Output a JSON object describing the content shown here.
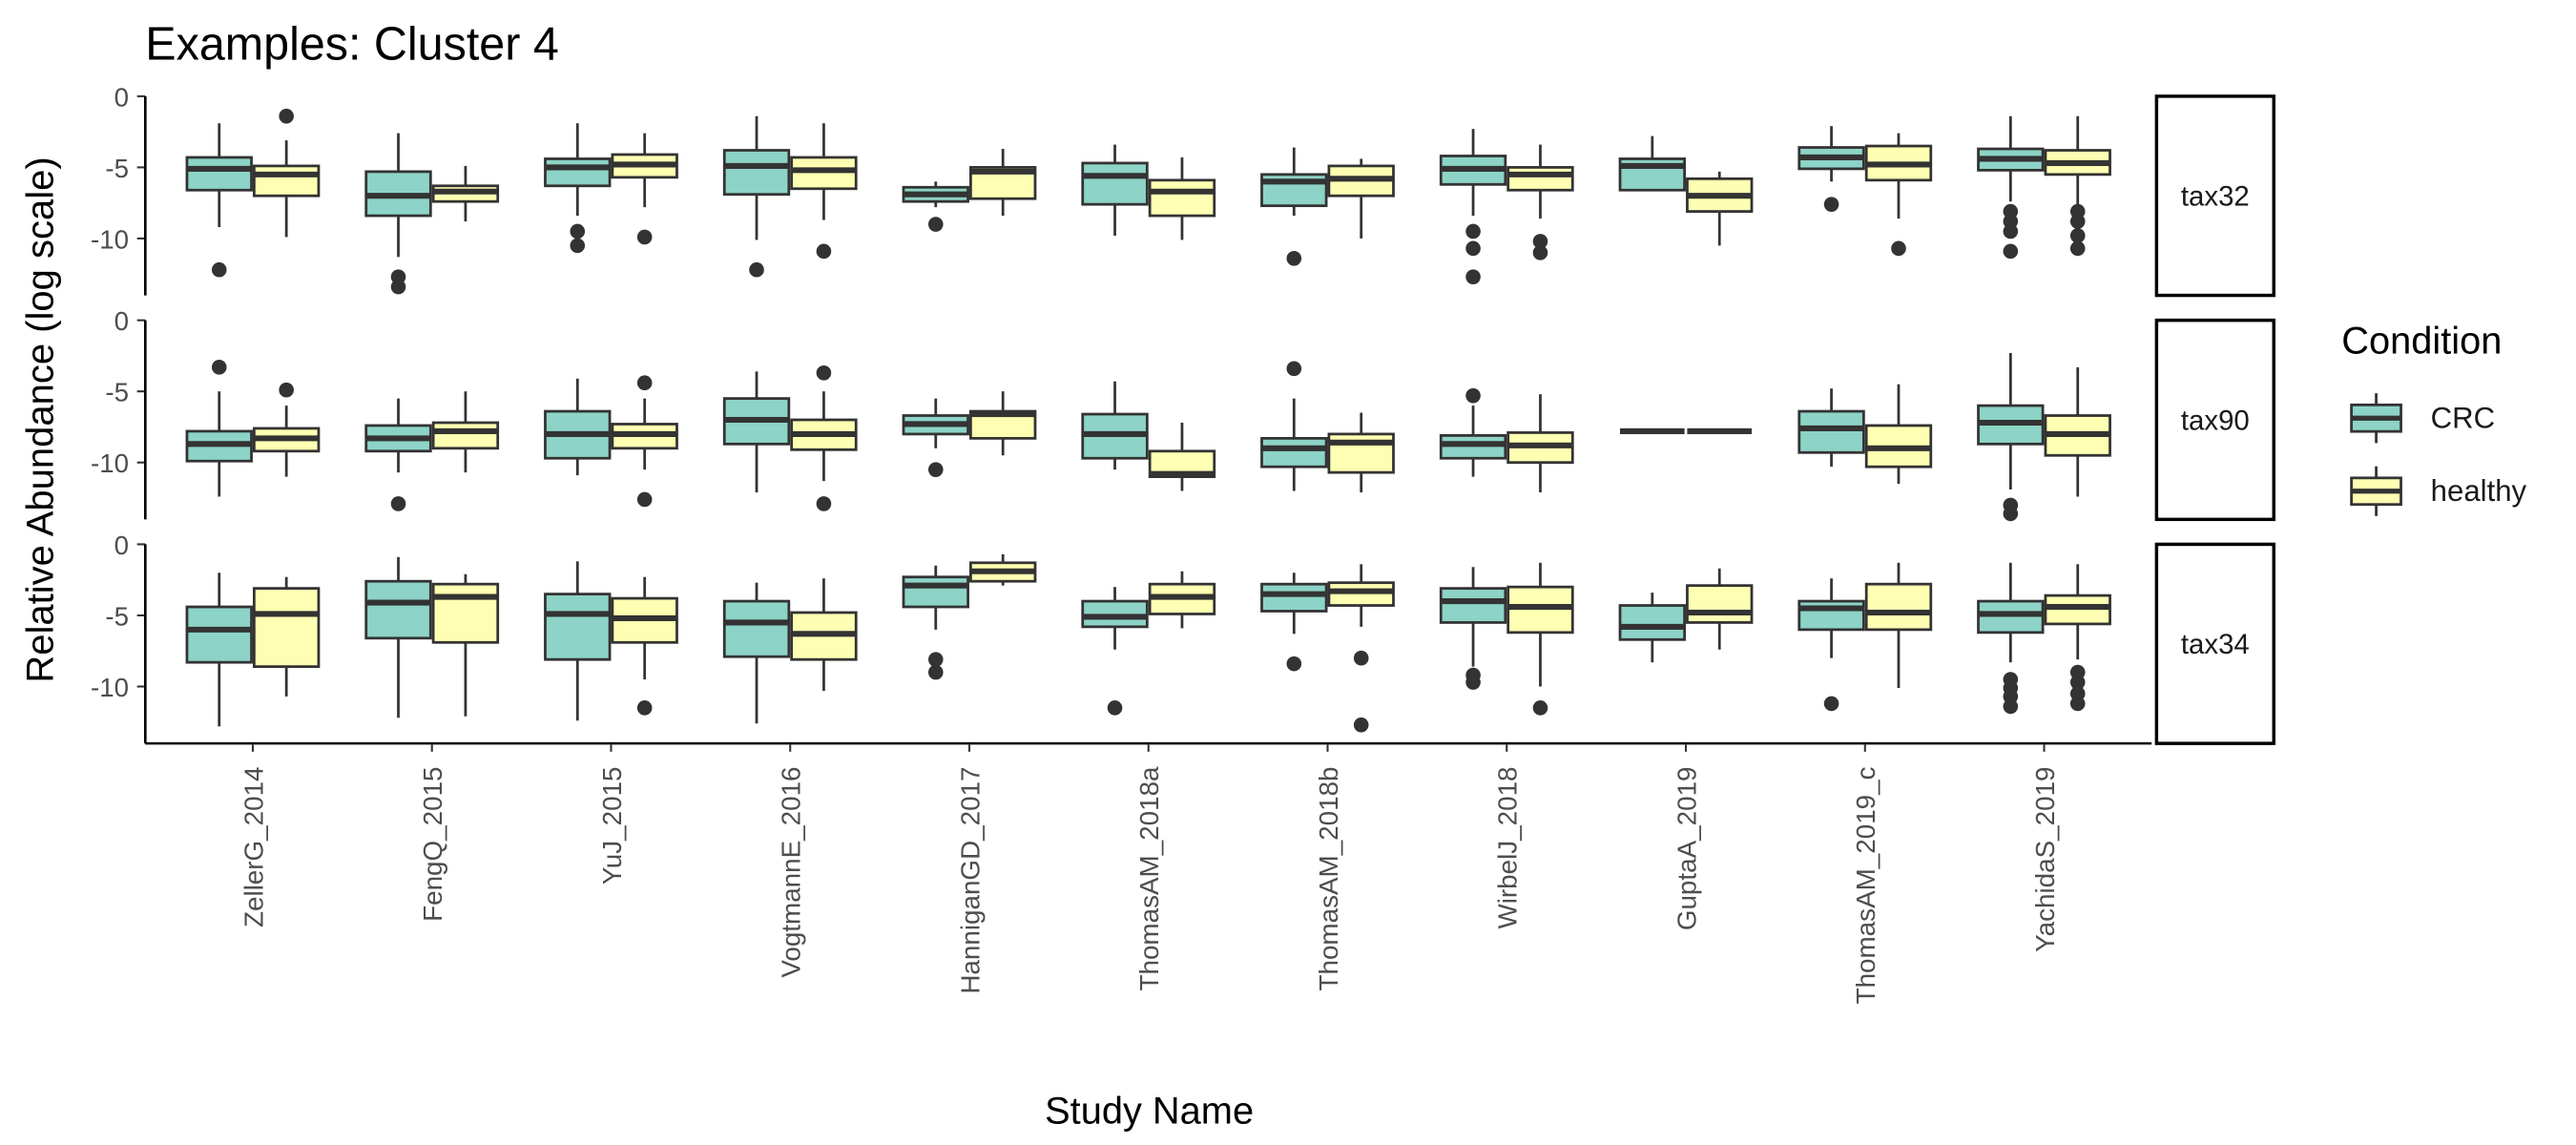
{
  "chart_data": {
    "type": "box",
    "title": "Examples: Cluster 4",
    "x_label": "Study Name",
    "y_label": "Relative Abundance (log scale)",
    "legend_title": "Condition",
    "categories": [
      "ZellerG_2014",
      "FengQ_2015",
      "YuJ_2015",
      "VogtmannE_2016",
      "HanniganGD_2017",
      "ThomasAM_2018a",
      "ThomasAM_2018b",
      "WirbelJ_2018",
      "GuptaA_2019",
      "ThomasAM_2019_c",
      "YachidaS_2019"
    ],
    "series": [
      {
        "name": "CRC",
        "color": "#8dd3c7"
      },
      {
        "name": "healthy",
        "color": "#ffffb3"
      }
    ],
    "facets": [
      {
        "label": "tax32",
        "ylim": [
          -14,
          0
        ],
        "yticks": [
          -10,
          -5,
          0
        ],
        "boxes": [
          [
            {
              "low": -9.2,
              "q1": -6.6,
              "median": -5.1,
              "q3": -4.3,
              "high": -1.9,
              "outliers": [
                -12.2
              ]
            },
            {
              "low": -11.3,
              "q1": -8.4,
              "median": -7.0,
              "q3": -5.3,
              "high": -2.6,
              "outliers": [
                -12.7,
                -13.4
              ]
            },
            {
              "low": -8.4,
              "q1": -6.3,
              "median": -5.0,
              "q3": -4.4,
              "high": -1.9,
              "outliers": [
                -9.5,
                -10.5
              ]
            },
            {
              "low": -10.1,
              "q1": -6.9,
              "median": -4.9,
              "q3": -3.8,
              "high": -1.4,
              "outliers": [
                -12.2
              ]
            },
            {
              "low": -7.8,
              "q1": -7.4,
              "median": -6.9,
              "q3": -6.4,
              "high": -6.0,
              "outliers": [
                -9.0
              ]
            },
            {
              "low": -9.8,
              "q1": -7.6,
              "median": -5.6,
              "q3": -4.7,
              "high": -3.4
            },
            {
              "low": -8.4,
              "q1": -7.7,
              "median": -6.0,
              "q3": -5.5,
              "high": -3.6,
              "outliers": [
                -11.4
              ]
            },
            {
              "low": -8.4,
              "q1": -6.2,
              "median": -5.1,
              "q3": -4.2,
              "high": -2.3,
              "outliers": [
                -9.5,
                -10.7,
                -12.7
              ]
            },
            {
              "low": -6.6,
              "q1": -6.6,
              "median": -4.9,
              "q3": -4.4,
              "high": -2.8
            },
            {
              "low": -6.0,
              "q1": -5.1,
              "median": -4.3,
              "q3": -3.6,
              "high": -2.1,
              "outliers": [
                -7.6
              ]
            },
            {
              "low": -7.4,
              "q1": -5.2,
              "median": -4.4,
              "q3": -3.7,
              "high": -1.4,
              "outliers": [
                -8.1,
                -8.8,
                -9.5,
                -10.9
              ]
            }
          ],
          [
            {
              "low": -9.9,
              "q1": -7.0,
              "median": -5.5,
              "q3": -4.9,
              "high": -3.1,
              "outliers": [
                -1.4
              ]
            },
            {
              "low": -8.8,
              "q1": -7.4,
              "median": -6.7,
              "q3": -6.3,
              "high": -4.9
            },
            {
              "low": -7.8,
              "q1": -5.7,
              "median": -4.8,
              "q3": -4.1,
              "high": -2.6,
              "outliers": [
                -9.9
              ]
            },
            {
              "low": -8.7,
              "q1": -6.5,
              "median": -5.2,
              "q3": -4.3,
              "high": -1.9,
              "outliers": [
                -10.9
              ]
            },
            {
              "low": -8.4,
              "q1": -7.2,
              "median": -5.3,
              "q3": -5.0,
              "high": -3.7
            },
            {
              "low": -10.1,
              "q1": -8.4,
              "median": -6.7,
              "q3": -5.9,
              "high": -4.3
            },
            {
              "low": -10.0,
              "q1": -7.0,
              "median": -5.8,
              "q3": -4.9,
              "high": -4.4
            },
            {
              "low": -8.6,
              "q1": -6.6,
              "median": -5.5,
              "q3": -5.0,
              "high": -3.4,
              "outliers": [
                -10.2,
                -11.0
              ]
            },
            {
              "low": -10.5,
              "q1": -8.1,
              "median": -7.0,
              "q3": -5.8,
              "high": -5.3
            },
            {
              "low": -8.6,
              "q1": -5.9,
              "median": -4.8,
              "q3": -3.5,
              "high": -2.6,
              "outliers": [
                -10.7
              ]
            },
            {
              "low": -7.7,
              "q1": -5.5,
              "median": -4.7,
              "q3": -3.8,
              "high": -1.4,
              "outliers": [
                -8.1,
                -8.8,
                -9.8,
                -10.7
              ]
            }
          ]
        ]
      },
      {
        "label": "tax90",
        "ylim": [
          -14,
          0
        ],
        "yticks": [
          -10,
          -5,
          0
        ],
        "boxes": [
          [
            {
              "low": -12.4,
              "q1": -9.9,
              "median": -8.7,
              "q3": -7.8,
              "high": -5.0,
              "outliers": [
                -3.3
              ]
            },
            {
              "low": -10.7,
              "q1": -9.2,
              "median": -8.3,
              "q3": -7.4,
              "high": -5.5,
              "outliers": [
                -12.9
              ]
            },
            {
              "low": -10.9,
              "q1": -9.7,
              "median": -8.0,
              "q3": -6.4,
              "high": -4.1
            },
            {
              "low": -12.1,
              "q1": -8.7,
              "median": -7.0,
              "q3": -5.5,
              "high": -3.6
            },
            {
              "low": -9.0,
              "q1": -8.0,
              "median": -7.3,
              "q3": -6.7,
              "high": -5.5,
              "outliers": [
                -10.5
              ]
            },
            {
              "low": -10.5,
              "q1": -9.7,
              "median": -8.0,
              "q3": -6.6,
              "high": -4.3
            },
            {
              "low": -12.0,
              "q1": -10.3,
              "median": -9.0,
              "q3": -8.3,
              "high": -5.5,
              "outliers": [
                -3.4
              ]
            },
            {
              "low": -11.0,
              "q1": -9.7,
              "median": -8.7,
              "q3": -8.1,
              "high": -6.0,
              "outliers": [
                -5.3
              ]
            },
            {
              "low": -7.8,
              "q1": -7.8,
              "median": -7.8,
              "q3": -7.8,
              "high": -7.8
            },
            {
              "low": -10.3,
              "q1": -9.3,
              "median": -7.6,
              "q3": -6.4,
              "high": -4.8
            },
            {
              "low": -11.9,
              "q1": -8.7,
              "median": -7.2,
              "q3": -6.0,
              "high": -2.3,
              "outliers": [
                -13.0,
                -13.6
              ]
            }
          ],
          [
            {
              "low": -11.0,
              "q1": -9.2,
              "median": -8.3,
              "q3": -7.6,
              "high": -6.0,
              "outliers": [
                -4.9
              ]
            },
            {
              "low": -10.7,
              "q1": -9.0,
              "median": -7.8,
              "q3": -7.2,
              "high": -5.0
            },
            {
              "low": -10.5,
              "q1": -9.0,
              "median": -8.0,
              "q3": -7.3,
              "high": -5.5,
              "outliers": [
                -4.4,
                -12.6
              ]
            },
            {
              "low": -11.3,
              "q1": -9.1,
              "median": -8.0,
              "q3": -7.0,
              "high": -5.0,
              "outliers": [
                -3.7,
                -12.9
              ]
            },
            {
              "low": -9.5,
              "q1": -8.3,
              "median": -6.6,
              "q3": -6.4,
              "high": -5.0
            },
            {
              "low": -12.0,
              "q1": -11.0,
              "median": -10.8,
              "q3": -9.2,
              "high": -7.2
            },
            {
              "low": -12.1,
              "q1": -10.7,
              "median": -8.6,
              "q3": -8.0,
              "high": -6.5
            },
            {
              "low": -12.1,
              "q1": -10.0,
              "median": -8.8,
              "q3": -7.9,
              "high": -5.2
            },
            {
              "low": -7.8,
              "q1": -7.8,
              "median": -7.8,
              "q3": -7.8,
              "high": -7.8
            },
            {
              "low": -11.5,
              "q1": -10.3,
              "median": -9.0,
              "q3": -7.4,
              "high": -4.5
            },
            {
              "low": -12.4,
              "q1": -9.5,
              "median": -8.0,
              "q3": -6.7,
              "high": -3.3
            }
          ]
        ]
      },
      {
        "label": "tax34",
        "ylim": [
          -14,
          0
        ],
        "yticks": [
          -10,
          -5,
          0
        ],
        "boxes": [
          [
            {
              "low": -12.8,
              "q1": -8.3,
              "median": -6.0,
              "q3": -4.4,
              "high": -2.0
            },
            {
              "low": -12.2,
              "q1": -6.6,
              "median": -4.1,
              "q3": -2.6,
              "high": -0.9
            },
            {
              "low": -12.4,
              "q1": -8.1,
              "median": -4.9,
              "q3": -3.5,
              "high": -1.2
            },
            {
              "low": -12.6,
              "q1": -7.9,
              "median": -5.5,
              "q3": -4.0,
              "high": -2.7
            },
            {
              "low": -6.0,
              "q1": -4.4,
              "median": -2.9,
              "q3": -2.3,
              "high": -1.5,
              "outliers": [
                -8.1,
                -9.0
              ]
            },
            {
              "low": -7.4,
              "q1": -5.8,
              "median": -5.1,
              "q3": -4.0,
              "high": -3.0,
              "outliers": [
                -11.5
              ]
            },
            {
              "low": -6.3,
              "q1": -4.7,
              "median": -3.5,
              "q3": -2.8,
              "high": -2.0,
              "outliers": [
                -8.4
              ]
            },
            {
              "low": -8.6,
              "q1": -5.5,
              "median": -4.0,
              "q3": -3.1,
              "high": -1.6,
              "outliers": [
                -9.2,
                -9.7
              ]
            },
            {
              "low": -8.3,
              "q1": -6.7,
              "median": -5.8,
              "q3": -4.3,
              "high": -3.4
            },
            {
              "low": -8.0,
              "q1": -6.0,
              "median": -4.5,
              "q3": -4.0,
              "high": -2.4,
              "outliers": [
                -11.2
              ]
            },
            {
              "low": -8.3,
              "q1": -6.2,
              "median": -4.9,
              "q3": -4.0,
              "high": -1.3,
              "outliers": [
                -9.5,
                -10.1,
                -10.7,
                -11.4
              ]
            }
          ],
          [
            {
              "low": -10.7,
              "q1": -8.6,
              "median": -4.9,
              "q3": -3.1,
              "high": -2.3
            },
            {
              "low": -12.1,
              "q1": -6.9,
              "median": -3.7,
              "q3": -2.8,
              "high": -2.1
            },
            {
              "low": -9.5,
              "q1": -6.9,
              "median": -5.2,
              "q3": -3.8,
              "high": -2.3,
              "outliers": [
                -11.5
              ]
            },
            {
              "low": -10.3,
              "q1": -8.1,
              "median": -6.3,
              "q3": -4.8,
              "high": -2.4
            },
            {
              "low": -2.9,
              "q1": -2.6,
              "median": -1.9,
              "q3": -1.3,
              "high": -0.7
            },
            {
              "low": -5.9,
              "q1": -4.9,
              "median": -3.7,
              "q3": -2.8,
              "high": -1.9
            },
            {
              "low": -5.8,
              "q1": -4.3,
              "median": -3.3,
              "q3": -2.7,
              "high": -1.4,
              "outliers": [
                -8.0,
                -12.7
              ]
            },
            {
              "low": -10.0,
              "q1": -6.2,
              "median": -4.4,
              "q3": -3.0,
              "high": -1.3,
              "outliers": [
                -11.5
              ]
            },
            {
              "low": -7.4,
              "q1": -5.5,
              "median": -4.8,
              "q3": -2.9,
              "high": -1.7
            },
            {
              "low": -10.1,
              "q1": -6.0,
              "median": -4.8,
              "q3": -2.8,
              "high": -1.3
            },
            {
              "low": -8.1,
              "q1": -5.6,
              "median": -4.4,
              "q3": -3.6,
              "high": -1.4,
              "outliers": [
                -9.0,
                -9.7,
                -10.5,
                -11.2
              ]
            }
          ]
        ]
      }
    ]
  }
}
